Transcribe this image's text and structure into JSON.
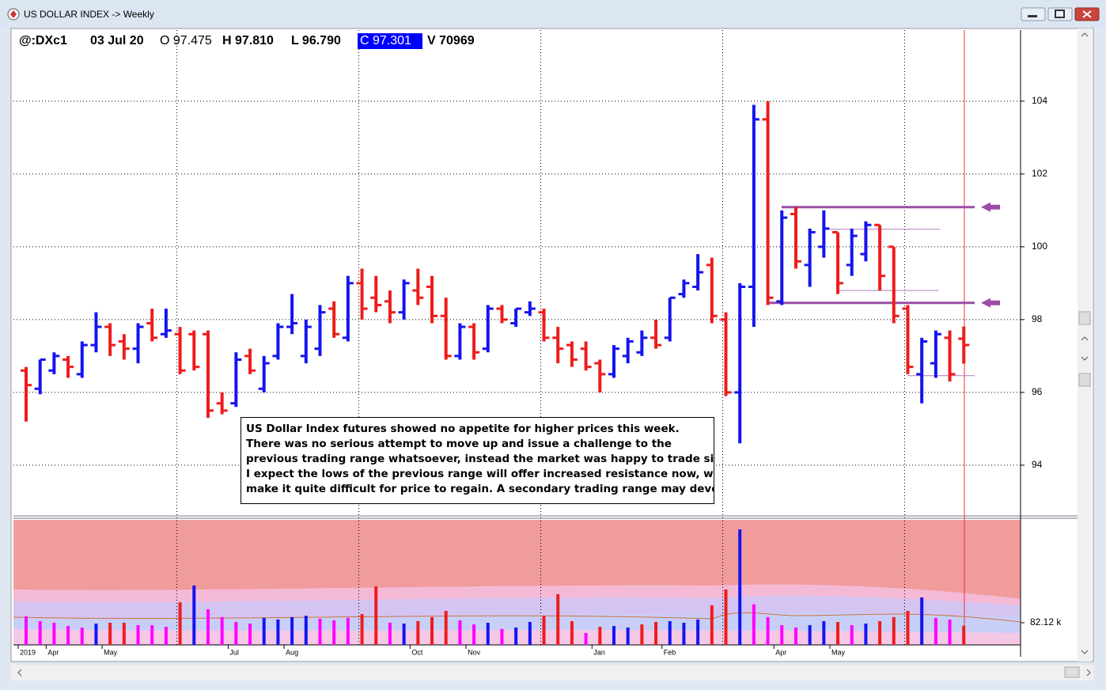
{
  "window": {
    "title": "US DOLLAR INDEX -> Weekly"
  },
  "header": {
    "symbol": "@:DXc1",
    "date": "03 Jul 20",
    "open": "O 97.475",
    "high": "H 97.810",
    "low": "L 96.790",
    "close": "C 97.301",
    "volume": "V 70969"
  },
  "annotation": [
    "US Dollar Index futures showed no appetite for higher prices this week.",
    "There was no serious attempt to move up and issue a challenge to the",
    "previous trading range whatsoever, instead the market was happy to trade sideways.",
    "I expect the lows of the previous range will offer increased resistance now, which will",
    "make it quite difficult for price to regain.  A secondary trading range may develop."
  ],
  "chart_data": {
    "type": "ohlc",
    "categories": [
      "2019",
      null,
      "Apr",
      null,
      null,
      null,
      "May",
      null,
      null,
      null,
      null,
      null,
      null,
      null,
      null,
      "Jul",
      null,
      null,
      null,
      "Aug",
      null,
      null,
      null,
      null,
      null,
      null,
      null,
      null,
      "Oct",
      null,
      null,
      null,
      "Nov",
      null,
      null,
      null,
      null,
      null,
      null,
      null,
      null,
      "Jan",
      null,
      null,
      null,
      null,
      "Feb",
      null,
      null,
      null,
      null,
      null,
      null,
      null,
      "Apr",
      null,
      null,
      null,
      "May",
      null,
      null,
      null,
      null,
      null,
      null,
      null,
      null,
      null
    ],
    "open": [
      96.6,
      96.1,
      96.6,
      96.9,
      96.5,
      97.3,
      97.8,
      97.4,
      97.2,
      97.9,
      97.6,
      97.6,
      97.6,
      97.6,
      95.7,
      95.7,
      97.0,
      96.1,
      97.0,
      97.8,
      97.0,
      97.2,
      98.3,
      97.5,
      99.0,
      98.6,
      98.5,
      98.2,
      98.8,
      98.9,
      98.1,
      97.0,
      97.8,
      97.2,
      98.3,
      97.9,
      98.2,
      98.2,
      97.5,
      97.3,
      97.2,
      96.8,
      96.5,
      97.0,
      97.1,
      97.5,
      97.5,
      98.7,
      98.9,
      99.5,
      98.0,
      96.0,
      98.9,
      103.5,
      98.5,
      100.9,
      99.5,
      100.0,
      100.4,
      99.5,
      99.8,
      100.6,
      100.0,
      98.3,
      96.5,
      96.8,
      97.5,
      97.475
    ],
    "high": [
      96.7,
      96.9,
      97.1,
      97.0,
      97.4,
      98.2,
      97.9,
      97.6,
      97.9,
      98.3,
      98.3,
      97.8,
      97.7,
      97.7,
      96.0,
      97.1,
      97.2,
      97.0,
      97.9,
      98.7,
      98.0,
      98.4,
      98.5,
      99.2,
      99.4,
      99.2,
      98.8,
      99.1,
      99.4,
      99.2,
      98.6,
      97.9,
      97.9,
      98.4,
      98.4,
      98.3,
      98.5,
      98.3,
      97.8,
      97.4,
      97.4,
      96.9,
      97.3,
      97.5,
      97.7,
      98.0,
      98.6,
      99.1,
      99.8,
      99.7,
      98.2,
      99.0,
      103.9,
      104.0,
      101.0,
      101.1,
      100.5,
      101.0,
      100.4,
      100.5,
      100.7,
      100.6,
      100.0,
      98.4,
      97.5,
      97.7,
      97.7,
      97.81
    ],
    "low": [
      95.2,
      95.95,
      96.5,
      96.4,
      96.4,
      97.1,
      97.0,
      96.9,
      96.8,
      97.4,
      97.5,
      96.5,
      96.6,
      95.3,
      95.4,
      95.6,
      96.5,
      96.0,
      96.9,
      97.6,
      96.8,
      97.0,
      97.5,
      97.4,
      98.0,
      98.2,
      97.9,
      98.0,
      98.4,
      97.9,
      96.9,
      96.9,
      96.9,
      97.1,
      97.9,
      97.8,
      98.1,
      97.4,
      96.8,
      96.7,
      96.6,
      96.0,
      96.4,
      96.8,
      97.0,
      97.2,
      97.4,
      98.6,
      98.8,
      97.9,
      95.9,
      94.6,
      97.8,
      98.4,
      98.4,
      99.4,
      98.9,
      99.7,
      98.7,
      99.2,
      99.6,
      98.8,
      97.9,
      96.5,
      95.7,
      96.4,
      96.3,
      96.79
    ],
    "close": [
      96.2,
      96.9,
      97.0,
      96.7,
      97.3,
      97.8,
      97.3,
      97.2,
      97.8,
      97.5,
      97.7,
      96.6,
      96.7,
      95.5,
      95.5,
      96.9,
      96.6,
      96.8,
      97.8,
      97.9,
      97.8,
      98.2,
      97.6,
      99.0,
      98.3,
      98.4,
      98.2,
      99.0,
      98.6,
      98.1,
      97.0,
      97.8,
      97.1,
      98.3,
      98.0,
      98.3,
      98.3,
      97.5,
      97.2,
      96.9,
      96.7,
      96.5,
      97.2,
      97.4,
      97.5,
      97.3,
      98.6,
      99.0,
      99.3,
      98.1,
      96.0,
      98.9,
      103.5,
      98.6,
      100.8,
      99.6,
      100.4,
      100.5,
      99.0,
      100.3,
      100.6,
      99.2,
      98.1,
      96.7,
      97.4,
      97.6,
      96.5,
      97.301
    ],
    "up_color": "#1414f0",
    "down_color": "#ee1c1c",
    "ylim": [
      92.65,
      105.91
    ],
    "yticks": [
      94,
      96,
      98,
      100,
      102,
      104
    ],
    "grid": true,
    "levels": [
      {
        "value": 101.09,
        "color": "#9b4ea6"
      },
      {
        "value": 98.46,
        "color": "#9b4ea6"
      },
      {
        "value": 100.48,
        "color": "#b27ac0"
      },
      {
        "value": 98.8,
        "color": "#b27ac0"
      },
      {
        "value": 96.46,
        "color": "#b27ac0"
      }
    ],
    "volume": {
      "values": [
        106000,
        88000,
        82000,
        70000,
        64500,
        79000,
        82000,
        82000,
        73000,
        73000,
        67000,
        158000,
        220000,
        132000,
        103000,
        85000,
        79000,
        100000,
        94000,
        103000,
        108000,
        97000,
        91000,
        100000,
        114000,
        217000,
        82000,
        79000,
        88000,
        103000,
        126000,
        91000,
        76000,
        82000,
        59000,
        64500,
        85000,
        108000,
        188000,
        88000,
        44000,
        67000,
        70000,
        64500,
        76000,
        85000,
        88000,
        82000,
        94000,
        147000,
        205000,
        428000,
        150000,
        103000,
        73000,
        64500,
        73000,
        88000,
        85000,
        73000,
        79000,
        88000,
        103000,
        126000,
        176000,
        100000,
        94000,
        70969
      ],
      "colors": [
        "#ff00ff",
        "#ff00ff",
        "#ff00ff",
        "#ff00ff",
        "#ff00ff",
        "#1414f0",
        "#ee1c1c",
        "#ee1c1c",
        "#ff00ff",
        "#ff00ff",
        "#ff00ff",
        "#ee1c1c",
        "#1414f0",
        "#ff00ff",
        "#ff00ff",
        "#ff00ff",
        "#ff00ff",
        "#1414f0",
        "#1414f0",
        "#1414f0",
        "#1414f0",
        "#ff00ff",
        "#ff00ff",
        "#ff00ff",
        "#ee1c1c",
        "#ee1c1c",
        "#ff00ff",
        "#1414f0",
        "#ee1c1c",
        "#ee1c1c",
        "#ee1c1c",
        "#ff00ff",
        "#ff00ff",
        "#1414f0",
        "#ff00ff",
        "#1414f0",
        "#1414f0",
        "#ee1c1c",
        "#ee1c1c",
        "#ee1c1c",
        "#ff00ff",
        "#ee1c1c",
        "#1414f0",
        "#1414f0",
        "#ee1c1c",
        "#ee1c1c",
        "#1414f0",
        "#1414f0",
        "#1414f0",
        "#ee1c1c",
        "#ee1c1c",
        "#1414f0",
        "#ff00ff",
        "#ff00ff",
        "#ff00ff",
        "#ff00ff",
        "#1414f0",
        "#1414f0",
        "#ee1c1c",
        "#ff00ff",
        "#1414f0",
        "#ee1c1c",
        "#ee1c1c",
        "#ee1c1c",
        "#1414f0",
        "#ff00ff",
        "#ff00ff",
        "#ee1c1c"
      ],
      "ylim": [
        0,
        463000
      ],
      "yticks": [
        {
          "value": 82120,
          "label": "82.12 k"
        }
      ]
    }
  }
}
